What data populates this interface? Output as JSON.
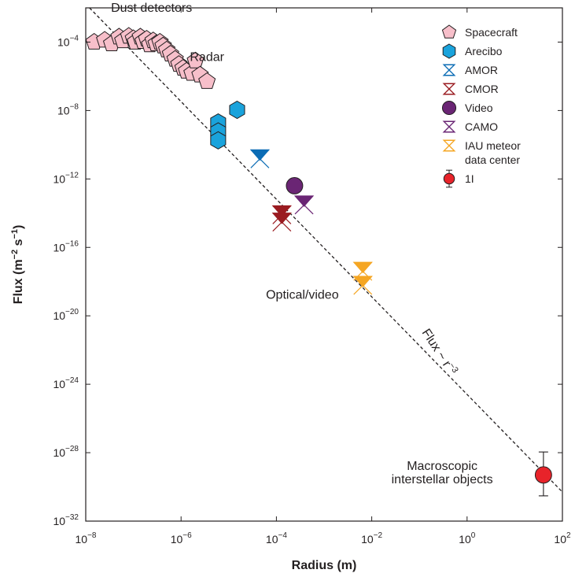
{
  "chart_data": {
    "type": "scatter",
    "xscale": "log",
    "yscale": "log",
    "xlim": [
      1e-08,
      100
    ],
    "ylim": [
      1e-32,
      0.01
    ],
    "xlabel": "Radius (m)",
    "ylabel_main": "Flux (m",
    "ylabel_exp1": "−2",
    "ylabel_mid": " s",
    "ylabel_exp2": "−1",
    "ylabel_end": ")",
    "grid": false,
    "legend_position": "top-right",
    "x_ticks": [
      {
        "value": 1e-08,
        "base": "10",
        "exp": "−8"
      },
      {
        "value": 1e-06,
        "base": "10",
        "exp": "−6"
      },
      {
        "value": 0.0001,
        "base": "10",
        "exp": "−4"
      },
      {
        "value": 0.01,
        "base": "10",
        "exp": "−2"
      },
      {
        "value": 1,
        "base": "10",
        "exp": "0"
      },
      {
        "value": 100,
        "base": "10",
        "exp": "2"
      }
    ],
    "y_ticks": [
      {
        "value": 0.0001,
        "base": "10",
        "exp": "−4"
      },
      {
        "value": 1e-08,
        "base": "10",
        "exp": "−8"
      },
      {
        "value": 1e-12,
        "base": "10",
        "exp": "−12"
      },
      {
        "value": 1e-16,
        "base": "10",
        "exp": "−16"
      },
      {
        "value": 1e-20,
        "base": "10",
        "exp": "−20"
      },
      {
        "value": 1e-24,
        "base": "10",
        "exp": "−24"
      },
      {
        "value": 1e-28,
        "base": "10",
        "exp": "−28"
      },
      {
        "value": 1e-32,
        "base": "10",
        "exp": "−32"
      }
    ],
    "trend_line": {
      "label_main": "Flux ~ r",
      "label_exp": "−3",
      "points": [
        [
          1.2e-08,
          0.01
        ],
        [
          100,
          5e-31
        ]
      ]
    },
    "annotations": [
      {
        "name": "dust-detectors-label",
        "text": "Dust detectors",
        "x": 2.4e-07,
        "y": 0.006
      },
      {
        "name": "radar-label",
        "text": "Radar",
        "x": 3.5e-06,
        "y": 8e-06
      },
      {
        "name": "optical-video-label",
        "text": "Optical/video",
        "x": 0.00035,
        "y": 1e-19
      },
      {
        "name": "macroscopic-label-line1",
        "text": "Macroscopic",
        "x": 0.3,
        "y": 1e-29
      },
      {
        "name": "macroscopic-label-line2",
        "text": "interstellar objects",
        "x": 0.3,
        "y": 1.6e-30
      }
    ],
    "series": [
      {
        "name": "Spacecraft",
        "marker": "pentagon",
        "color": "#f7bfca",
        "stroke": "#231f20",
        "points": [
          [
            1.5e-08,
            0.0001
          ],
          [
            2.5e-08,
            0.00013
          ],
          [
            3.5e-08,
            8e-05
          ],
          [
            5e-08,
            0.0002
          ],
          [
            6e-08,
            0.00012
          ],
          [
            8e-08,
            0.00022
          ],
          [
            1e-07,
            0.00016
          ],
          [
            1.1e-07,
            0.0001
          ],
          [
            1.4e-07,
            0.0002
          ],
          [
            1.6e-07,
            0.00011
          ],
          [
            1.9e-07,
            0.00015
          ],
          [
            2.2e-07,
            7e-05
          ],
          [
            2.6e-07,
            0.00012
          ],
          [
            3e-07,
            8e-05
          ],
          [
            3.6e-07,
            0.0001
          ],
          [
            4.2e-07,
            6e-05
          ],
          [
            5e-07,
            3.5e-05
          ],
          [
            6e-07,
            2e-05
          ],
          [
            7.5e-07,
            1e-05
          ],
          [
            9e-07,
            5e-06
          ],
          [
            1.1e-06,
            3e-06
          ],
          [
            1.3e-06,
            2e-06
          ],
          [
            1.7e-06,
            1.5e-06
          ],
          [
            2e-06,
            8e-06
          ],
          [
            2.5e-06,
            1.2e-06
          ],
          [
            3.5e-06,
            5e-07
          ]
        ]
      },
      {
        "name": "Arecibo",
        "marker": "hexagon",
        "color": "#1aa3dc",
        "stroke": "#231f20",
        "points": [
          [
            6e-06,
            2e-09
          ],
          [
            6e-06,
            6e-10
          ],
          [
            6e-06,
            1.8e-10
          ],
          [
            1.5e-05,
            1.1e-08
          ]
        ]
      },
      {
        "name": "AMOR",
        "marker": "hourglass",
        "color": "#0b6cb5",
        "stroke": "#0b6cb5",
        "points": [
          [
            4.5e-05,
            1.5e-11
          ]
        ]
      },
      {
        "name": "CMOR",
        "marker": "hourglass",
        "color": "#9a1b20",
        "stroke": "#9a1b20",
        "points": [
          [
            0.00013,
            8e-15
          ],
          [
            0.00013,
            3e-15
          ]
        ]
      },
      {
        "name": "Video",
        "marker": "circle",
        "color": "#6a2574",
        "stroke": "#231f20",
        "points": [
          [
            0.00024,
            4e-13
          ]
        ]
      },
      {
        "name": "CAMO",
        "marker": "hourglass",
        "color": "#6a2574",
        "stroke": "#6a2574",
        "points": [
          [
            0.00038,
            3e-14
          ]
        ]
      },
      {
        "name": "IAU meteor data center",
        "marker": "hourglass",
        "color": "#f5a623",
        "stroke": "#f5a623",
        "points": [
          [
            0.0065,
            4e-18
          ],
          [
            0.0065,
            6e-19
          ]
        ]
      },
      {
        "name": "1I",
        "marker": "circle",
        "color": "#e8232a",
        "stroke": "#231f20",
        "points": [
          [
            40,
            5e-30
          ]
        ],
        "error_y": [
          [
            1.1e-28,
            3e-31
          ]
        ]
      }
    ],
    "legend": [
      {
        "label_lines": [
          "Spacecraft"
        ],
        "marker": "pentagon",
        "color": "#f7bfca",
        "stroke": "#231f20"
      },
      {
        "label_lines": [
          "Arecibo"
        ],
        "marker": "hexagon",
        "color": "#1aa3dc",
        "stroke": "#231f20"
      },
      {
        "label_lines": [
          "AMOR"
        ],
        "marker": "hourglass-outline",
        "color": "#0b6cb5",
        "stroke": "#0b6cb5"
      },
      {
        "label_lines": [
          "CMOR"
        ],
        "marker": "hourglass-outline",
        "color": "#9a1b20",
        "stroke": "#9a1b20"
      },
      {
        "label_lines": [
          "Video"
        ],
        "marker": "circle",
        "color": "#6a2574",
        "stroke": "#231f20"
      },
      {
        "label_lines": [
          "CAMO"
        ],
        "marker": "hourglass-outline",
        "color": "#6a2574",
        "stroke": "#6a2574"
      },
      {
        "label_lines": [
          "IAU meteor",
          "data center"
        ],
        "marker": "hourglass-outline",
        "color": "#f5a623",
        "stroke": "#f5a623"
      },
      {
        "label_lines": [
          "1I"
        ],
        "marker": "circle-errorbar",
        "color": "#e8232a",
        "stroke": "#231f20"
      }
    ]
  }
}
